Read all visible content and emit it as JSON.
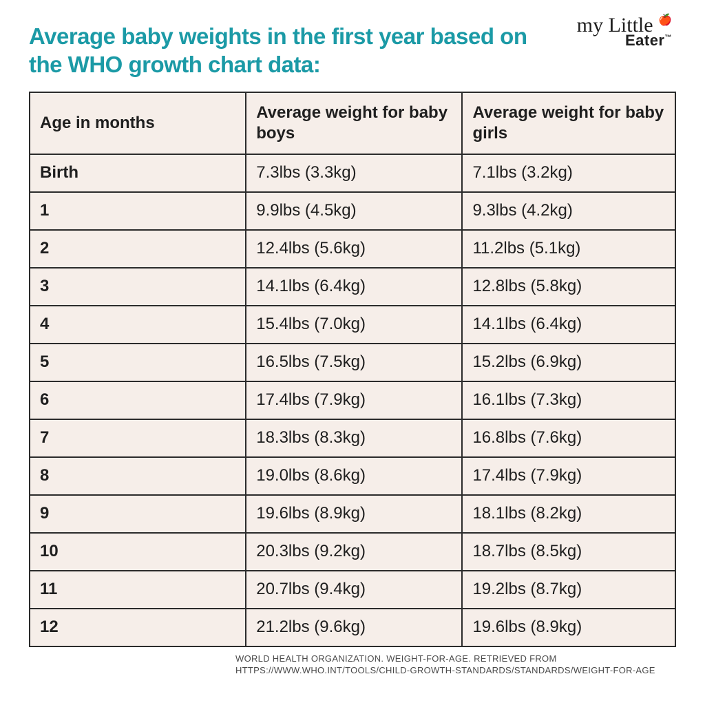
{
  "title": "Average baby weights in the first year based on the WHO growth chart data:",
  "logo": {
    "line1": "my Little",
    "line2": "Eater",
    "trademark": "™"
  },
  "table": {
    "background_color": "#f6eee9",
    "border_color": "#2b2b2b",
    "columns": [
      "Age in months",
      "Average weight for baby boys",
      "Average weight for baby girls"
    ],
    "rows": [
      {
        "age": "Birth",
        "boys": "7.3lbs (3.3kg)",
        "girls": "7.1lbs (3.2kg)"
      },
      {
        "age": "1",
        "boys": "9.9lbs (4.5kg)",
        "girls": "9.3lbs (4.2kg)"
      },
      {
        "age": "2",
        "boys": "12.4lbs (5.6kg)",
        "girls": "11.2lbs (5.1kg)"
      },
      {
        "age": "3",
        "boys": "14.1lbs (6.4kg)",
        "girls": "12.8lbs (5.8kg)"
      },
      {
        "age": "4",
        "boys": "15.4lbs (7.0kg)",
        "girls": "14.1lbs (6.4kg)"
      },
      {
        "age": "5",
        "boys": "16.5lbs (7.5kg)",
        "girls": "15.2lbs (6.9kg)"
      },
      {
        "age": "6",
        "boys": "17.4lbs (7.9kg)",
        "girls": "16.1lbs (7.3kg)"
      },
      {
        "age": "7",
        "boys": "18.3lbs (8.3kg)",
        "girls": "16.8lbs (7.6kg)"
      },
      {
        "age": "8",
        "boys": "19.0lbs (8.6kg)",
        "girls": "17.4lbs (7.9kg)"
      },
      {
        "age": "9",
        "boys": "19.6lbs (8.9kg)",
        "girls": "18.1lbs (8.2kg)"
      },
      {
        "age": "10",
        "boys": "20.3lbs (9.2kg)",
        "girls": "18.7lbs (8.5kg)"
      },
      {
        "age": "11",
        "boys": "20.7lbs (9.4kg)",
        "girls": "19.2lbs (8.7kg)"
      },
      {
        "age": "12",
        "boys": "21.2lbs (9.6kg)",
        "girls": "19.6lbs (8.9kg)"
      }
    ]
  },
  "source": {
    "line1": "WORLD HEALTH ORGANIZATION. WEIGHT-FOR-AGE. RETRIEVED FROM",
    "line2": "HTTPS://WWW.WHO.INT/TOOLS/CHILD-GROWTH-STANDARDS/STANDARDS/WEIGHT-FOR-AGE"
  },
  "colors": {
    "title": "#1b9aa6",
    "text": "#1f1f1f",
    "page_bg": "#ffffff"
  }
}
